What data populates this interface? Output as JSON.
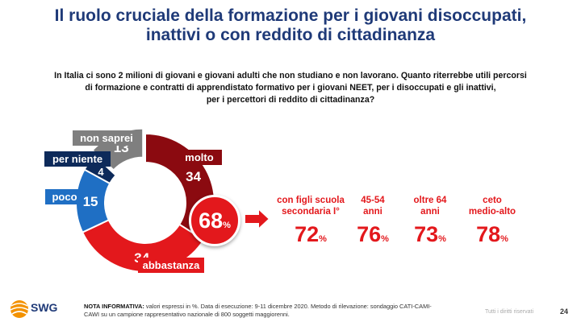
{
  "title_line1": "Il ruolo cruciale della formazione per i giovani disoccupati,",
  "title_line2": "inattivi o con reddito di cittadinanza",
  "subtitle_line1": "In Italia ci sono 2 milioni di giovani e giovani adulti che non studiano e non lavorano. Quanto riterrebbe utili percorsi",
  "subtitle_line2": "di formazione e contratti di apprendistato formativo per i giovani NEET, per i disoccupati e gli inattivi,",
  "subtitle_line3": "per i percettori di reddito di cittadinanza?",
  "chart_data": [
    {
      "type": "pie",
      "variant": "donut",
      "slices": [
        {
          "label": "molto",
          "value": 34,
          "color": "#8b0a10"
        },
        {
          "label": "abbastanza",
          "value": 34,
          "color": "#e3181c"
        },
        {
          "label": "poco",
          "value": 15,
          "color": "#1f6fc4"
        },
        {
          "label": "per niente",
          "value": 4,
          "color": "#0d2a5a"
        },
        {
          "label": "non saprei",
          "value": 13,
          "color": "#7f7f7f"
        }
      ],
      "center_total": {
        "value": "68",
        "unit": "%"
      }
    },
    {
      "type": "table",
      "items": [
        {
          "label_line1": "con figli scuola",
          "label_line2": "secondaria I°",
          "value": "72",
          "unit": "%"
        },
        {
          "label_line1": "45-54",
          "label_line2": "anni",
          "value": "76",
          "unit": "%"
        },
        {
          "label_line1": "oltre 64",
          "label_line2": "anni",
          "value": "73",
          "unit": "%"
        },
        {
          "label_line1": "ceto",
          "label_line2": "medio-alto",
          "value": "78",
          "unit": "%"
        }
      ]
    }
  ],
  "footer": {
    "logo": "SWG",
    "note_label": "NOTA INFORMATIVA:",
    "note_line1": " valori espressi in %. Data di esecuzione: 9-11 dicembre 2020. Metodo di rilevazione: sondaggio CATI-CAMI-",
    "note_line2": "CAWI su un campione rappresentativo nazionale di 800 soggetti maggiorenni.",
    "rights": "Tutti i diritti riservati",
    "page": "24"
  },
  "colors": {
    "title": "#1f3a78",
    "accent_red": "#e3181c",
    "dark_red": "#8b0a10",
    "blue": "#1f6fc4",
    "navy": "#0d2a5a",
    "gray": "#7f7f7f"
  }
}
